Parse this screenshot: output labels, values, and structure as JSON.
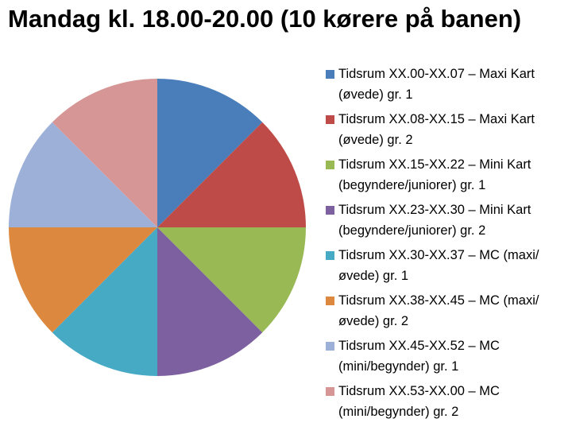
{
  "chart_data": {
    "type": "pie",
    "title": "Mandag kl. 18.00-20.00 (10 kørere på banen)",
    "series": [
      {
        "name": "Tidsrum XX.00-XX.07 – Maxi Kart (øvede) gr. 1",
        "color": "#4a7ebb",
        "values": [
          12.5
        ]
      },
      {
        "name": "Tidsrum XX.08-XX.15 – Maxi Kart (øvede) gr. 2",
        "color": "#be4b48",
        "values": [
          12.5
        ]
      },
      {
        "name": "Tidsrum XX.15-XX.22 – Mini Kart (begyndere/juniorer) gr. 1",
        "color": "#98b954",
        "values": [
          12.5
        ]
      },
      {
        "name": "Tidsrum XX.23-XX.30 – Mini Kart (begyndere/juniorer) gr. 2",
        "color": "#7d60a0",
        "values": [
          12.5
        ]
      },
      {
        "name": "Tidsrum XX.30-XX.37 – MC (maxi/øvede) gr. 1",
        "color": "#46aac5",
        "values": [
          12.5
        ]
      },
      {
        "name": "Tidsrum XX.38-XX.45 – MC (maxi/øvede) gr. 2",
        "color": "#dd883f",
        "values": [
          12.5
        ]
      },
      {
        "name": "Tidsrum XX.45-XX.52 – MC (mini/begynder) gr. 1",
        "color": "#9cb0d8",
        "values": [
          12.5
        ]
      },
      {
        "name": "Tidsrum XX.53-XX.00 – MC (mini/begynder) gr. 2",
        "color": "#d59695",
        "values": [
          12.5
        ]
      }
    ],
    "legend": "right"
  }
}
